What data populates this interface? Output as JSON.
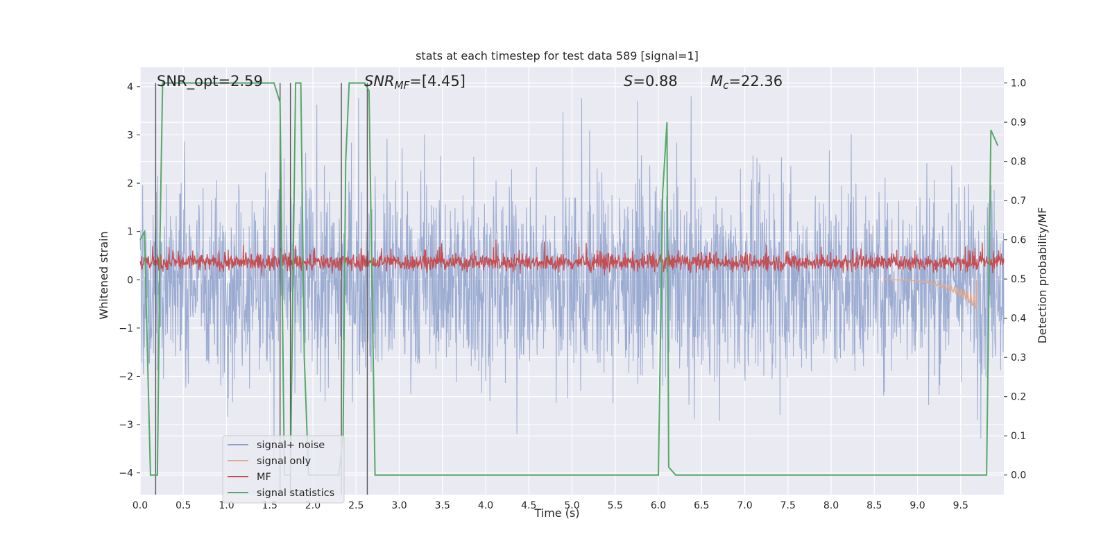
{
  "chart_data": {
    "type": "line",
    "title": "stats at each timestep for test data 589 [signal=1]",
    "xlabel": "Time (s)",
    "ylabel_left": "Whitened strain",
    "ylabel_right": "Detection probability/MF",
    "xlim": [
      0,
      10
    ],
    "ylim_left": [
      -4.45,
      4.4
    ],
    "ylim_right": [
      -0.05,
      1.04
    ],
    "x_ticks": [
      "0.0",
      "0.5",
      "1.0",
      "1.5",
      "2.0",
      "2.5",
      "3.0",
      "3.5",
      "4.0",
      "4.5",
      "5.0",
      "5.5",
      "6.0",
      "6.5",
      "7.0",
      "7.5",
      "8.0",
      "8.5",
      "9.0",
      "9.5"
    ],
    "y_ticks_left": [
      "−4",
      "−3",
      "−2",
      "−1",
      "0",
      "1",
      "2",
      "3",
      "4"
    ],
    "y_ticks_right": [
      "0.0",
      "0.1",
      "0.2",
      "0.3",
      "0.4",
      "0.5",
      "0.6",
      "0.7",
      "0.8",
      "0.9",
      "1.0"
    ],
    "grid": true,
    "legend_position": "lower-left",
    "annotations": {
      "snr_opt": "SNR_opt=2.59",
      "snr_mf": "=[4.45]",
      "snr_mf_symbol": "SNR",
      "snr_mf_sub": "MF",
      "s_symbol": "S",
      "s_value": "=0.88",
      "mc_symbol": "M",
      "mc_sub": "c",
      "mc_value": "=22.36"
    },
    "series": [
      {
        "name": "signal+ noise",
        "color": "#8da0cb",
        "axis": "left",
        "style": "noise",
        "amplitude": 2.2
      },
      {
        "name": "signal only",
        "color": "#e5a98c",
        "axis": "left",
        "style": "chirp",
        "chirp_end_x": 9.68,
        "chirp_peak": -0.6
      },
      {
        "name": "MF",
        "color": "#c44e52",
        "axis": "left",
        "style": "mf",
        "baseline": 0.36
      },
      {
        "name": "signal statistics",
        "color": "#55a868",
        "axis": "right",
        "x": [
          0.0,
          0.05,
          0.12,
          0.2,
          0.23,
          0.26,
          0.3,
          1.55,
          1.62,
          1.67,
          1.74,
          1.8,
          1.86,
          1.9,
          1.95,
          2.3,
          2.35,
          2.38,
          2.42,
          2.6,
          2.65,
          2.72,
          6.0,
          6.05,
          6.1,
          6.12,
          6.2,
          9.8,
          9.85,
          9.93
        ],
        "y": [
          0.6,
          0.62,
          0.0,
          0.0,
          0.6,
          1.0,
          1.0,
          1.0,
          0.95,
          0.0,
          0.0,
          1.0,
          1.0,
          0.3,
          0.0,
          0.0,
          0.1,
          0.8,
          1.0,
          1.0,
          0.98,
          0.0,
          0.0,
          0.72,
          0.9,
          0.02,
          0.0,
          0.0,
          0.88,
          0.84
        ]
      }
    ],
    "vertical_lines": {
      "color": "#555555",
      "x": [
        0.18,
        1.62,
        1.74,
        2.33,
        2.63
      ],
      "y_range": [
        -0.05,
        1.0
      ]
    }
  }
}
